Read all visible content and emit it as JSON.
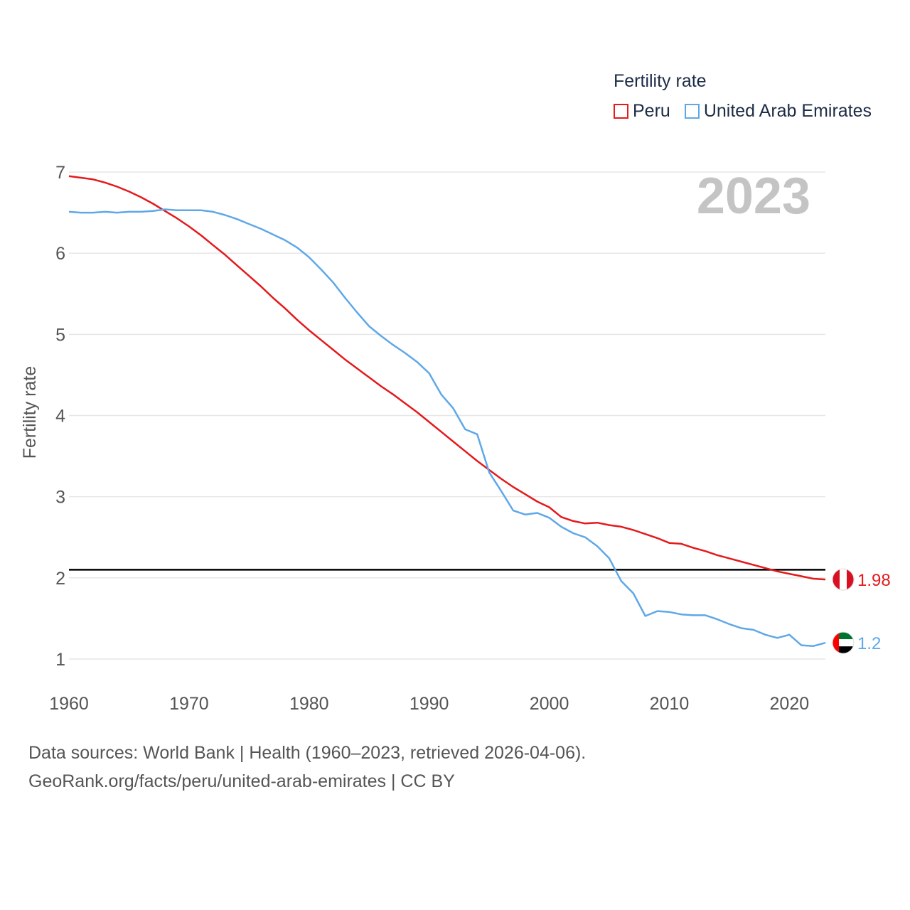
{
  "colors": {
    "peru": "#e41a1c",
    "uae": "#5fa8e8",
    "grid": "#e6e6e6",
    "axis_text": "#555555",
    "year_watermark": "#c4c4c4",
    "reference": "#000000"
  },
  "legend": {
    "title": "Fertility rate"
  },
  "footer": {
    "line1": "Data sources: World Bank | Health (1960–2023, retrieved 2026-04-06).",
    "line2": "GeoRank.org/facts/peru/united-arab-emirates | CC BY"
  },
  "chart_data": {
    "type": "line",
    "title": "Fertility rate",
    "year_label": "2023",
    "ylabel": "Fertility rate",
    "xlabel": "",
    "xlim": [
      1960,
      2023
    ],
    "ylim": [
      1,
      7
    ],
    "x_ticks": [
      1960,
      1970,
      1980,
      1990,
      2000,
      2010,
      2020
    ],
    "y_ticks": [
      1,
      2,
      3,
      4,
      5,
      6,
      7
    ],
    "reference_line": {
      "y": 2.1
    },
    "x": [
      1960,
      1961,
      1962,
      1963,
      1964,
      1965,
      1966,
      1967,
      1968,
      1969,
      1970,
      1971,
      1972,
      1973,
      1974,
      1975,
      1976,
      1977,
      1978,
      1979,
      1980,
      1981,
      1982,
      1983,
      1984,
      1985,
      1986,
      1987,
      1988,
      1989,
      1990,
      1991,
      1992,
      1993,
      1994,
      1995,
      1996,
      1997,
      1998,
      1999,
      2000,
      2001,
      2002,
      2003,
      2004,
      2005,
      2006,
      2007,
      2008,
      2009,
      2010,
      2011,
      2012,
      2013,
      2014,
      2015,
      2016,
      2017,
      2018,
      2019,
      2020,
      2021,
      2022,
      2023
    ],
    "series": [
      {
        "name": "Peru",
        "color": "#e41a1c",
        "end_label": "1.98",
        "values": [
          6.95,
          6.93,
          6.91,
          6.87,
          6.82,
          6.76,
          6.69,
          6.61,
          6.52,
          6.43,
          6.33,
          6.22,
          6.1,
          5.98,
          5.85,
          5.72,
          5.59,
          5.45,
          5.32,
          5.18,
          5.05,
          4.93,
          4.81,
          4.69,
          4.58,
          4.47,
          4.36,
          4.26,
          4.15,
          4.04,
          3.92,
          3.8,
          3.68,
          3.56,
          3.44,
          3.33,
          3.22,
          3.12,
          3.03,
          2.94,
          2.87,
          2.75,
          2.7,
          2.67,
          2.68,
          2.65,
          2.63,
          2.59,
          2.54,
          2.49,
          2.43,
          2.42,
          2.37,
          2.33,
          2.28,
          2.24,
          2.2,
          2.16,
          2.12,
          2.08,
          2.05,
          2.02,
          1.99,
          1.98
        ]
      },
      {
        "name": "United Arab Emirates",
        "color": "#5fa8e8",
        "end_label": "1.2",
        "values": [
          6.51,
          6.5,
          6.5,
          6.51,
          6.5,
          6.51,
          6.51,
          6.52,
          6.54,
          6.53,
          6.53,
          6.53,
          6.51,
          6.47,
          6.42,
          6.36,
          6.3,
          6.23,
          6.16,
          6.07,
          5.95,
          5.8,
          5.64,
          5.45,
          5.27,
          5.1,
          4.98,
          4.87,
          4.77,
          4.66,
          4.52,
          4.26,
          4.09,
          3.83,
          3.77,
          3.3,
          3.07,
          2.83,
          2.78,
          2.8,
          2.74,
          2.63,
          2.55,
          2.5,
          2.39,
          2.24,
          1.96,
          1.81,
          1.53,
          1.59,
          1.58,
          1.55,
          1.54,
          1.54,
          1.49,
          1.43,
          1.38,
          1.36,
          1.3,
          1.26,
          1.3,
          1.17,
          1.16,
          1.2
        ]
      }
    ]
  }
}
